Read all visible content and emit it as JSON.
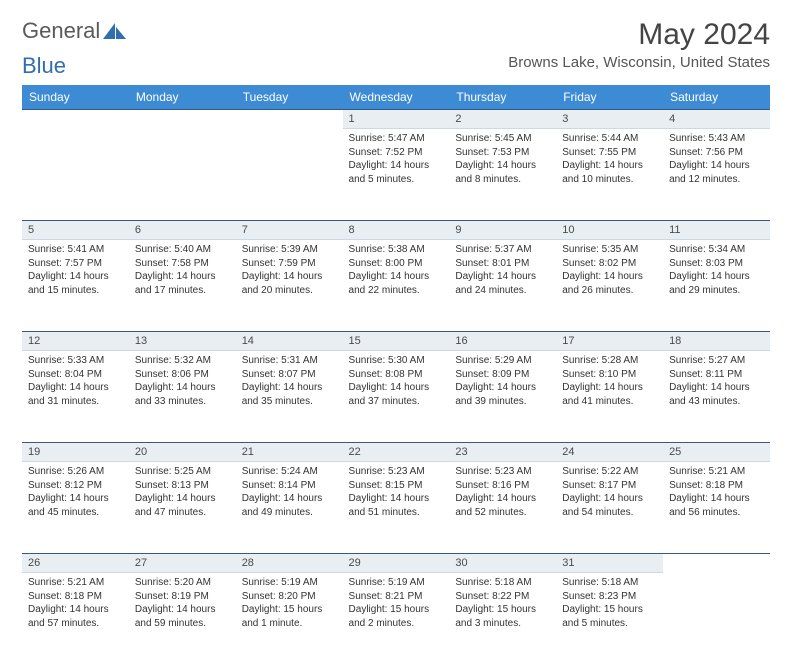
{
  "logo": {
    "text_general": "General",
    "text_blue": "Blue"
  },
  "header": {
    "month_title": "May 2024",
    "location": "Browns Lake, Wisconsin, United States"
  },
  "colors": {
    "header_bg": "#3d8bd4",
    "daynum_bg": "#e9eef2",
    "rule": "#355a7d"
  },
  "day_names": [
    "Sunday",
    "Monday",
    "Tuesday",
    "Wednesday",
    "Thursday",
    "Friday",
    "Saturday"
  ],
  "weeks": [
    [
      null,
      null,
      null,
      {
        "n": "1",
        "sunrise": "Sunrise: 5:47 AM",
        "sunset": "Sunset: 7:52 PM",
        "daylight": "Daylight: 14 hours and 5 minutes."
      },
      {
        "n": "2",
        "sunrise": "Sunrise: 5:45 AM",
        "sunset": "Sunset: 7:53 PM",
        "daylight": "Daylight: 14 hours and 8 minutes."
      },
      {
        "n": "3",
        "sunrise": "Sunrise: 5:44 AM",
        "sunset": "Sunset: 7:55 PM",
        "daylight": "Daylight: 14 hours and 10 minutes."
      },
      {
        "n": "4",
        "sunrise": "Sunrise: 5:43 AM",
        "sunset": "Sunset: 7:56 PM",
        "daylight": "Daylight: 14 hours and 12 minutes."
      }
    ],
    [
      {
        "n": "5",
        "sunrise": "Sunrise: 5:41 AM",
        "sunset": "Sunset: 7:57 PM",
        "daylight": "Daylight: 14 hours and 15 minutes."
      },
      {
        "n": "6",
        "sunrise": "Sunrise: 5:40 AM",
        "sunset": "Sunset: 7:58 PM",
        "daylight": "Daylight: 14 hours and 17 minutes."
      },
      {
        "n": "7",
        "sunrise": "Sunrise: 5:39 AM",
        "sunset": "Sunset: 7:59 PM",
        "daylight": "Daylight: 14 hours and 20 minutes."
      },
      {
        "n": "8",
        "sunrise": "Sunrise: 5:38 AM",
        "sunset": "Sunset: 8:00 PM",
        "daylight": "Daylight: 14 hours and 22 minutes."
      },
      {
        "n": "9",
        "sunrise": "Sunrise: 5:37 AM",
        "sunset": "Sunset: 8:01 PM",
        "daylight": "Daylight: 14 hours and 24 minutes."
      },
      {
        "n": "10",
        "sunrise": "Sunrise: 5:35 AM",
        "sunset": "Sunset: 8:02 PM",
        "daylight": "Daylight: 14 hours and 26 minutes."
      },
      {
        "n": "11",
        "sunrise": "Sunrise: 5:34 AM",
        "sunset": "Sunset: 8:03 PM",
        "daylight": "Daylight: 14 hours and 29 minutes."
      }
    ],
    [
      {
        "n": "12",
        "sunrise": "Sunrise: 5:33 AM",
        "sunset": "Sunset: 8:04 PM",
        "daylight": "Daylight: 14 hours and 31 minutes."
      },
      {
        "n": "13",
        "sunrise": "Sunrise: 5:32 AM",
        "sunset": "Sunset: 8:06 PM",
        "daylight": "Daylight: 14 hours and 33 minutes."
      },
      {
        "n": "14",
        "sunrise": "Sunrise: 5:31 AM",
        "sunset": "Sunset: 8:07 PM",
        "daylight": "Daylight: 14 hours and 35 minutes."
      },
      {
        "n": "15",
        "sunrise": "Sunrise: 5:30 AM",
        "sunset": "Sunset: 8:08 PM",
        "daylight": "Daylight: 14 hours and 37 minutes."
      },
      {
        "n": "16",
        "sunrise": "Sunrise: 5:29 AM",
        "sunset": "Sunset: 8:09 PM",
        "daylight": "Daylight: 14 hours and 39 minutes."
      },
      {
        "n": "17",
        "sunrise": "Sunrise: 5:28 AM",
        "sunset": "Sunset: 8:10 PM",
        "daylight": "Daylight: 14 hours and 41 minutes."
      },
      {
        "n": "18",
        "sunrise": "Sunrise: 5:27 AM",
        "sunset": "Sunset: 8:11 PM",
        "daylight": "Daylight: 14 hours and 43 minutes."
      }
    ],
    [
      {
        "n": "19",
        "sunrise": "Sunrise: 5:26 AM",
        "sunset": "Sunset: 8:12 PM",
        "daylight": "Daylight: 14 hours and 45 minutes."
      },
      {
        "n": "20",
        "sunrise": "Sunrise: 5:25 AM",
        "sunset": "Sunset: 8:13 PM",
        "daylight": "Daylight: 14 hours and 47 minutes."
      },
      {
        "n": "21",
        "sunrise": "Sunrise: 5:24 AM",
        "sunset": "Sunset: 8:14 PM",
        "daylight": "Daylight: 14 hours and 49 minutes."
      },
      {
        "n": "22",
        "sunrise": "Sunrise: 5:23 AM",
        "sunset": "Sunset: 8:15 PM",
        "daylight": "Daylight: 14 hours and 51 minutes."
      },
      {
        "n": "23",
        "sunrise": "Sunrise: 5:23 AM",
        "sunset": "Sunset: 8:16 PM",
        "daylight": "Daylight: 14 hours and 52 minutes."
      },
      {
        "n": "24",
        "sunrise": "Sunrise: 5:22 AM",
        "sunset": "Sunset: 8:17 PM",
        "daylight": "Daylight: 14 hours and 54 minutes."
      },
      {
        "n": "25",
        "sunrise": "Sunrise: 5:21 AM",
        "sunset": "Sunset: 8:18 PM",
        "daylight": "Daylight: 14 hours and 56 minutes."
      }
    ],
    [
      {
        "n": "26",
        "sunrise": "Sunrise: 5:21 AM",
        "sunset": "Sunset: 8:18 PM",
        "daylight": "Daylight: 14 hours and 57 minutes."
      },
      {
        "n": "27",
        "sunrise": "Sunrise: 5:20 AM",
        "sunset": "Sunset: 8:19 PM",
        "daylight": "Daylight: 14 hours and 59 minutes."
      },
      {
        "n": "28",
        "sunrise": "Sunrise: 5:19 AM",
        "sunset": "Sunset: 8:20 PM",
        "daylight": "Daylight: 15 hours and 1 minute."
      },
      {
        "n": "29",
        "sunrise": "Sunrise: 5:19 AM",
        "sunset": "Sunset: 8:21 PM",
        "daylight": "Daylight: 15 hours and 2 minutes."
      },
      {
        "n": "30",
        "sunrise": "Sunrise: 5:18 AM",
        "sunset": "Sunset: 8:22 PM",
        "daylight": "Daylight: 15 hours and 3 minutes."
      },
      {
        "n": "31",
        "sunrise": "Sunrise: 5:18 AM",
        "sunset": "Sunset: 8:23 PM",
        "daylight": "Daylight: 15 hours and 5 minutes."
      },
      null
    ]
  ]
}
